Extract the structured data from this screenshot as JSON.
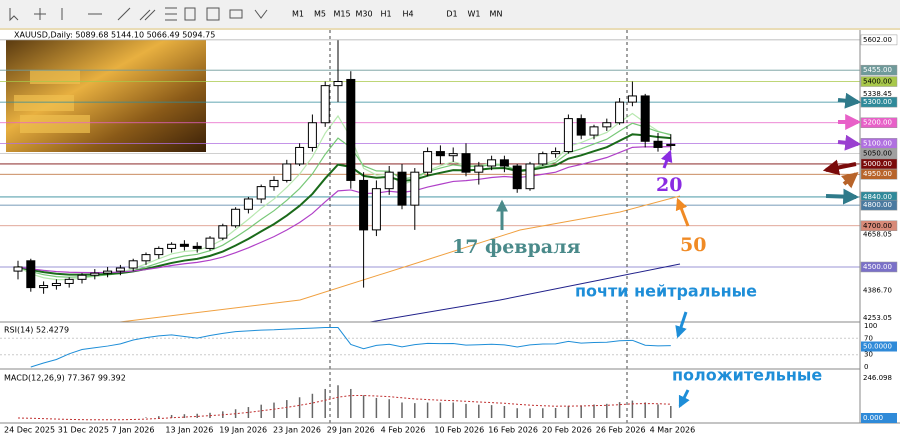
{
  "toolbar": {
    "timeframes": [
      "M1",
      "M5",
      "M15",
      "M30",
      "H1",
      "H4",
      "D1",
      "W1",
      "MN"
    ]
  },
  "chart": {
    "header": "XAUUSD,Daily: 5089.68 5144.10 5066.49 5094.75",
    "price_range": [
      4233,
      5650
    ],
    "levels": [
      {
        "value": 5602,
        "label": "5602.00",
        "color": "#ffffff",
        "line": "#aaaaaa"
      },
      {
        "value": 5455,
        "label": "5455.00",
        "color": "#6f9a9a",
        "line": "#6f9a9a"
      },
      {
        "value": 5400,
        "label": "5400.00",
        "color": "#a8c84a",
        "line": "#a8c84a"
      },
      {
        "value": 5338.45,
        "label": "5338.45"
      },
      {
        "value": 5300,
        "label": "5300.00",
        "color": "#2f8a9a",
        "line": "#2f8a9a"
      },
      {
        "value": 5200,
        "label": "5200.00",
        "color": "#e860c8",
        "line": "#e860c8"
      },
      {
        "value": 5100,
        "label": "5100.00",
        "color": "#b070e0",
        "line": "#b070e0"
      },
      {
        "value": 5050,
        "label": "5050.00",
        "color": "#a0a0a0",
        "line": "#c0c0c0"
      },
      {
        "value": 5000,
        "label": "5000.00",
        "color": "#7a0a0a",
        "line": "#7a0a0a"
      },
      {
        "value": 4950,
        "label": "4950.00",
        "color": "#b8642a",
        "line": "#b8642a"
      },
      {
        "value": 4840,
        "label": "4840.00",
        "color": "#2f8a9a",
        "line": "#2f8a9a"
      },
      {
        "value": 4800,
        "label": "4800.00",
        "color": "#4a7aa0",
        "line": "#4a7aa0"
      },
      {
        "value": 4700,
        "label": "4700.00",
        "color": "#d88a78",
        "line": "#d88a78"
      },
      {
        "value": 4658.05,
        "label": "4658.05"
      },
      {
        "value": 4500,
        "label": "4500.00",
        "color": "#7a70c8",
        "line": "#7a70c8"
      },
      {
        "value": 4386.7,
        "label": "4386.70"
      },
      {
        "value": 4253.05,
        "label": "4253.05"
      }
    ],
    "candles": [
      [
        4480,
        4530,
        4440,
        4500
      ],
      [
        4530,
        4540,
        4380,
        4400
      ],
      [
        4400,
        4430,
        4370,
        4410
      ],
      [
        4410,
        4440,
        4390,
        4420
      ],
      [
        4420,
        4450,
        4400,
        4440
      ],
      [
        4440,
        4470,
        4420,
        4460
      ],
      [
        4460,
        4490,
        4440,
        4470
      ],
      [
        4470,
        4500,
        4450,
        4480
      ],
      [
        4480,
        4510,
        4460,
        4495
      ],
      [
        4495,
        4540,
        4480,
        4530
      ],
      [
        4530,
        4570,
        4510,
        4560
      ],
      [
        4560,
        4600,
        4540,
        4590
      ],
      [
        4590,
        4620,
        4570,
        4610
      ],
      [
        4610,
        4630,
        4580,
        4600
      ],
      [
        4600,
        4620,
        4570,
        4590
      ],
      [
        4590,
        4650,
        4580,
        4640
      ],
      [
        4640,
        4710,
        4630,
        4700
      ],
      [
        4700,
        4790,
        4690,
        4780
      ],
      [
        4780,
        4840,
        4760,
        4830
      ],
      [
        4830,
        4900,
        4810,
        4890
      ],
      [
        4890,
        4940,
        4870,
        4920
      ],
      [
        4920,
        5020,
        4910,
        5000
      ],
      [
        5000,
        5100,
        4990,
        5080
      ],
      [
        5080,
        5240,
        5060,
        5200
      ],
      [
        5200,
        5400,
        5180,
        5380
      ],
      [
        5380,
        5600,
        5300,
        5400
      ],
      [
        5410,
        5450,
        4880,
        4920
      ],
      [
        4920,
        4960,
        4400,
        4680
      ],
      [
        4680,
        4920,
        4650,
        4880
      ],
      [
        4880,
        4990,
        4850,
        4960
      ],
      [
        4960,
        5000,
        4780,
        4800
      ],
      [
        4800,
        4980,
        4680,
        4960
      ],
      [
        4960,
        5080,
        4940,
        5060
      ],
      [
        5060,
        5090,
        5000,
        5040
      ],
      [
        5040,
        5080,
        5010,
        5050
      ],
      [
        5050,
        5100,
        4940,
        4960
      ],
      [
        4960,
        5010,
        4900,
        4990
      ],
      [
        4990,
        5040,
        4970,
        5020
      ],
      [
        5020,
        5040,
        4960,
        4990
      ],
      [
        4990,
        5000,
        4860,
        4880
      ],
      [
        4880,
        5010,
        4870,
        5000
      ],
      [
        5000,
        5060,
        4990,
        5050
      ],
      [
        5050,
        5080,
        5030,
        5060
      ],
      [
        5060,
        5240,
        5050,
        5220
      ],
      [
        5220,
        5240,
        5120,
        5140
      ],
      [
        5140,
        5190,
        5120,
        5180
      ],
      [
        5180,
        5220,
        5160,
        5200
      ],
      [
        5200,
        5320,
        5190,
        5300
      ],
      [
        5300,
        5400,
        5280,
        5330
      ],
      [
        5330,
        5340,
        5080,
        5110
      ],
      [
        5110,
        5150,
        5060,
        5080
      ],
      [
        5089.68,
        5144.1,
        5066.49,
        5094.75
      ]
    ],
    "dates": [
      "24 Dec 2025",
      "31 Dec 2025",
      "7 Jan 2026",
      "13 Jan 2026",
      "19 Jan 2026",
      "23 Jan 2026",
      "29 Jan 2026",
      "4 Feb 2026",
      "10 Feb 2026",
      "16 Feb 2026",
      "20 Feb 2026",
      "26 Feb 2026",
      "4 Mar 2026"
    ]
  },
  "rsi": {
    "label": "RSI(14) 52.4279",
    "ticks": [
      100,
      70,
      30,
      0
    ],
    "box": "50.0000"
  },
  "macd": {
    "label": "MACD(12,26,9) 77.367 99.392",
    "top": {
      "value": 246.098,
      "label": "246.098"
    },
    "box": {
      "value": 0,
      "label": "0.000"
    }
  },
  "annotations": {
    "date_note": "17 февраля",
    "ma20": "20",
    "ma50": "50",
    "rsi_note": "почти нейтральные",
    "macd_note": "положительные"
  }
}
